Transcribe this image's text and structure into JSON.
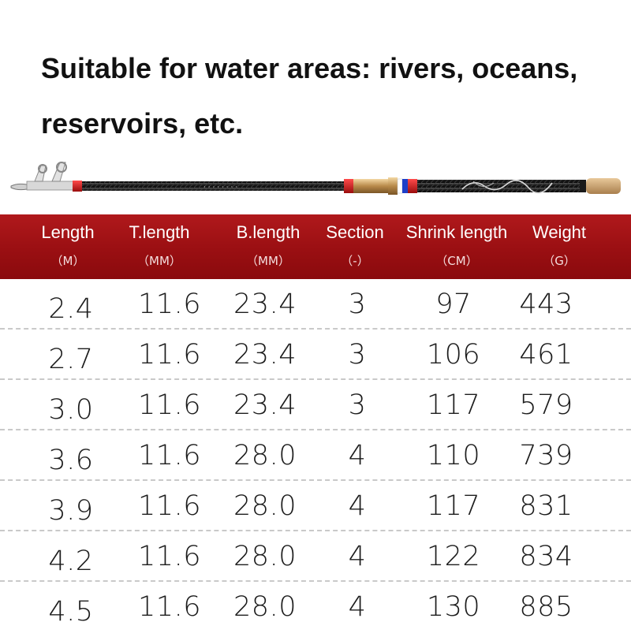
{
  "headline": {
    "line1": "Suitable for water areas: rivers, oceans,",
    "line2": "reservoirs, etc."
  },
  "product_image": {
    "icon": "telescopic-fishing-rod",
    "accent_colors": [
      "#c4161c",
      "#1a1a1a",
      "#c9a06a",
      "#1e40c8"
    ]
  },
  "table": {
    "header_color": "#a3121a",
    "columns": [
      {
        "label": "Length",
        "unit": "（M）"
      },
      {
        "label": "T.length",
        "unit": "（MM）"
      },
      {
        "label": "B.length",
        "unit": "（MM）"
      },
      {
        "label": "Section",
        "unit": "（-）"
      },
      {
        "label": "Shrink length",
        "unit": "（CM）"
      },
      {
        "label": "Weight",
        "unit": "（G）"
      }
    ],
    "rows": [
      [
        "2.4",
        "11.6",
        "23.4",
        "3",
        "97",
        "443"
      ],
      [
        "2.7",
        "11.6",
        "23.4",
        "3",
        "106",
        "461"
      ],
      [
        "3.0",
        "11.6",
        "23.4",
        "3",
        "117",
        "579"
      ],
      [
        "3.6",
        "11.6",
        "28.0",
        "4",
        "110",
        "739"
      ],
      [
        "3.9",
        "11.6",
        "28.0",
        "4",
        "117",
        "831"
      ],
      [
        "4.2",
        "11.6",
        "28.0",
        "4",
        "122",
        "834"
      ],
      [
        "4.5",
        "11.6",
        "28.0",
        "4",
        "130",
        "885"
      ]
    ]
  }
}
